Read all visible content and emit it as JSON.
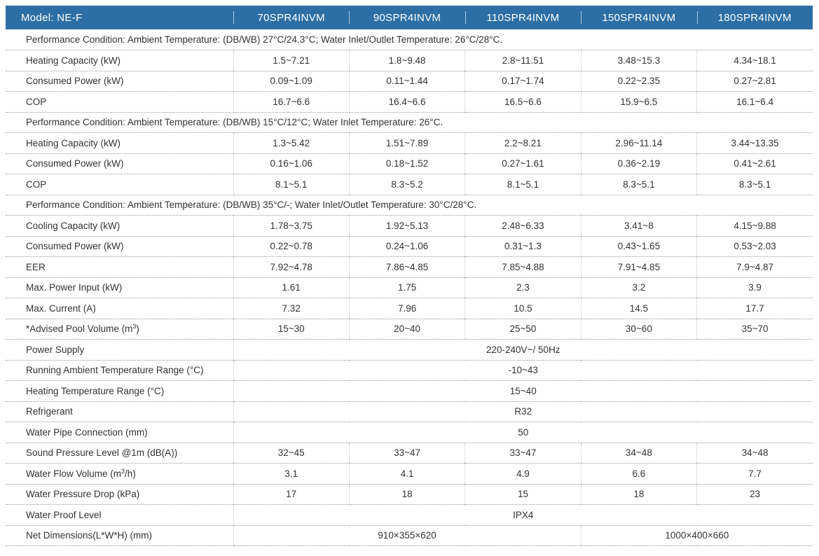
{
  "header": {
    "model_label": "Model: NE-F",
    "models": [
      "70SPR4INVM",
      "90SPR4INVM",
      "110SPR4INVM",
      "150SPR4INVM",
      "180SPR4INVM"
    ]
  },
  "colors": {
    "header_bg": "#2d6fa5",
    "header_text": "#ffffff",
    "body_text": "#333333",
    "row_divider": "#9a9a9a"
  },
  "rows": [
    {
      "type": "condition",
      "text": "Performance Condition: Ambient Temperature:  (DB/WB) 27°C/24.3°C; Water Inlet/Outlet Temperature: 26°C/28°C."
    },
    {
      "type": "values",
      "label": "Heating Capacity (kW)",
      "values": [
        "1.5~7.21",
        "1.8~9.48",
        "2.8~11.51",
        "3.48~15.3",
        "4.34~18.1"
      ]
    },
    {
      "type": "values",
      "label": "Consumed Power (kW)",
      "values": [
        "0.09~1.09",
        "0.11~1.44",
        "0.17~1.74",
        "0.22~2.35",
        "0.27~2.81"
      ]
    },
    {
      "type": "values",
      "label": "COP",
      "values": [
        "16.7~6.6",
        "16.4~6.6",
        "16.5~6.6",
        "15.9~6.5",
        "16.1~6.4"
      ]
    },
    {
      "type": "condition",
      "text": "Performance Condition: Ambient Temperature:  (DB/WB) 15°C/12°C; Water Inlet Temperature: 26°C."
    },
    {
      "type": "values",
      "label": "Heating Capacity (kW)",
      "values": [
        "1.3~5.42",
        "1.51~7.89",
        "2.2~8.21",
        "2.96~11.14",
        "3.44~13.35"
      ]
    },
    {
      "type": "values",
      "label": "Consumed Power (kW)",
      "values": [
        "0.16~1.06",
        "0.18~1.52",
        "0.27~1.61",
        "0.36~2.19",
        "0.41~2.61"
      ]
    },
    {
      "type": "values",
      "label": "COP",
      "values": [
        "8.1~5.1",
        "8.3~5.2",
        "8.1~5.1",
        "8.3~5.1",
        "8.3~5.1"
      ]
    },
    {
      "type": "condition",
      "text": "Performance Condition: Ambient Temperature:  (DB/WB) 35°C/-; Water Inlet/Outlet Temperature: 30°C/28°C."
    },
    {
      "type": "values",
      "label": "Cooling Capacity (kW)",
      "values": [
        "1.78~3.75",
        "1.92~5.13",
        "2.48~6.33",
        "3.41~8",
        "4.15~9.88"
      ]
    },
    {
      "type": "values",
      "label": "Consumed Power (kW)",
      "values": [
        "0.22~0.78",
        "0.24~1.06",
        "0.31~1.3",
        "0.43~1.65",
        "0.53~2.03"
      ]
    },
    {
      "type": "values",
      "label": "EER",
      "values": [
        "7.92~4.78",
        "7.86~4.85",
        "7.85~4.88",
        "7.91~4.85",
        "7.9~4.87"
      ]
    },
    {
      "type": "values",
      "label": "Max. Power Input (kW)",
      "values": [
        "1.61",
        "1.75",
        "2.3",
        "3.2",
        "3.9"
      ]
    },
    {
      "type": "values",
      "label": "Max. Current (A)",
      "values": [
        "7.32",
        "7.96",
        "10.5",
        "14.5",
        "17.7"
      ]
    },
    {
      "type": "values",
      "label": "*Advised Pool Volume (m",
      "label_sup": "3",
      "label_end": ")",
      "values": [
        "15~30",
        "20~40",
        "25~50",
        "30~60",
        "35~70"
      ]
    },
    {
      "type": "span",
      "label": "Power Supply",
      "value": "220-240V~/ 50Hz"
    },
    {
      "type": "span",
      "label": "Running Ambient Temperature Range (°C)",
      "value": "-10~43"
    },
    {
      "type": "span",
      "label": "Heating Temperature Range (°C)",
      "value": "15~40"
    },
    {
      "type": "span",
      "label": "Refrigerant",
      "value": "R32"
    },
    {
      "type": "span",
      "label": "Water Pipe Connection (mm)",
      "value": "50"
    },
    {
      "type": "values",
      "label": "Sound Pressure Level @1m (dB(A))",
      "values": [
        "32~45",
        "33~47",
        "33~47",
        "34~48",
        "34~48"
      ]
    },
    {
      "type": "values",
      "label": "Water Flow Volume (m",
      "label_sup": "3",
      "label_end": "/h)",
      "values": [
        "3.1",
        "4.1",
        "4.9",
        "6.6",
        "7.7"
      ]
    },
    {
      "type": "values",
      "label": "Water Pressure Drop (kPa)",
      "values": [
        "17",
        "18",
        "15",
        "18",
        "23"
      ]
    },
    {
      "type": "span",
      "label": "Water Proof Level",
      "value": "IPX4"
    },
    {
      "type": "split",
      "label": "Net Dimensions(L*W*H) (mm)",
      "groups": [
        {
          "span": 3,
          "value": "910×355×620"
        },
        {
          "span": 2,
          "value": "1000×400×660"
        }
      ]
    }
  ]
}
